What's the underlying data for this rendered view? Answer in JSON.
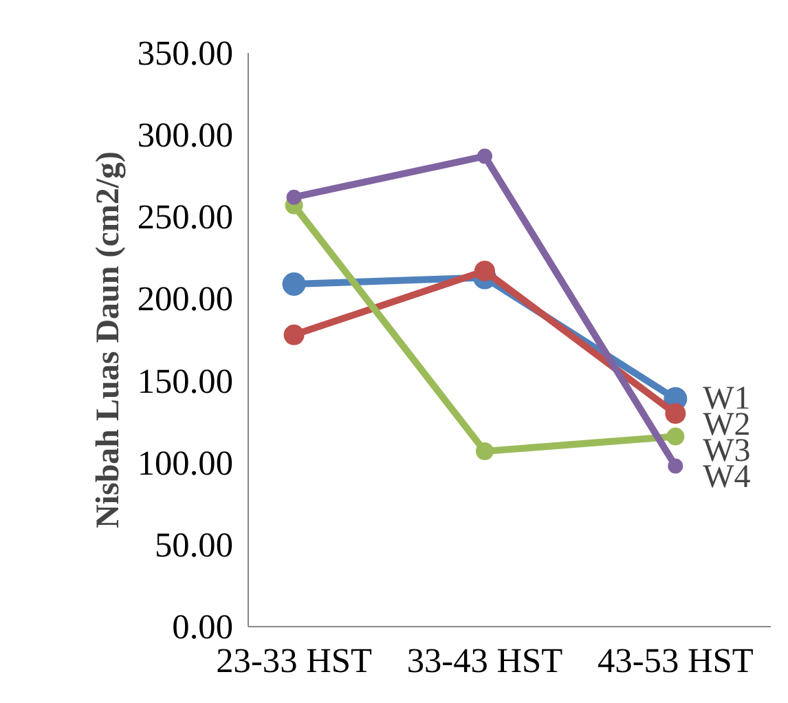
{
  "chart_data": {
    "type": "line",
    "ylabel": "Nisbah Luas Daun (cm2/g)",
    "categories": [
      "23-33 HST",
      "33-43 HST",
      "43-53 HST"
    ],
    "series": [
      {
        "name": "W1",
        "color": "#4f81bd",
        "values": [
          209,
          213,
          139
        ]
      },
      {
        "name": "W2",
        "color": "#c0504d",
        "values": [
          178,
          217,
          130
        ]
      },
      {
        "name": "W3",
        "color": "#9bbb59",
        "values": [
          257,
          107,
          116
        ]
      },
      {
        "name": "W4",
        "color": "#8064a2",
        "values": [
          262,
          287,
          98
        ]
      }
    ],
    "ylim": [
      0,
      350
    ],
    "yticks": [
      {
        "value": 0,
        "label": "0.00"
      },
      {
        "value": 50,
        "label": "50.00"
      },
      {
        "value": 100,
        "label": "100.00"
      },
      {
        "value": 150,
        "label": "150.00"
      },
      {
        "value": 200,
        "label": "200.00"
      },
      {
        "value": 250,
        "label": "250.00"
      },
      {
        "value": 300,
        "label": "300.00"
      },
      {
        "value": 350,
        "label": "350.00"
      }
    ],
    "grid": false,
    "marker": "circle",
    "line_style": "solid"
  }
}
